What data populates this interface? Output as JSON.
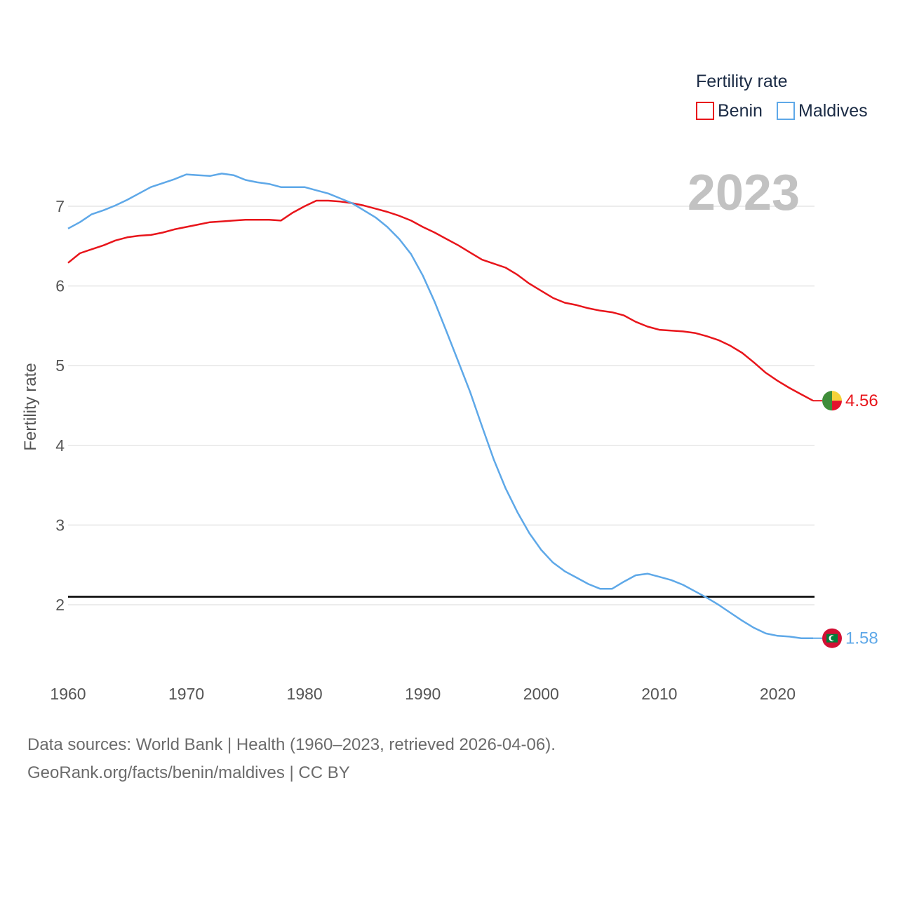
{
  "chart_data": {
    "type": "line",
    "title": "2023",
    "xlabel": "",
    "ylabel": "Fertility rate",
    "xlim": [
      1960,
      2023
    ],
    "ylim": [
      1,
      7.9
    ],
    "x_ticks": [
      1960,
      1970,
      1980,
      1990,
      2000,
      2010,
      2020
    ],
    "y_ticks": [
      2,
      3,
      4,
      5,
      6,
      7
    ],
    "reference_line": 2.1,
    "legend": {
      "title": "Fertility rate",
      "position": "top-right"
    },
    "x": [
      1960,
      1961,
      1962,
      1963,
      1964,
      1965,
      1966,
      1967,
      1968,
      1969,
      1970,
      1971,
      1972,
      1973,
      1974,
      1975,
      1976,
      1977,
      1978,
      1979,
      1980,
      1981,
      1982,
      1983,
      1984,
      1985,
      1986,
      1987,
      1988,
      1989,
      1990,
      1991,
      1992,
      1993,
      1994,
      1995,
      1996,
      1997,
      1998,
      1999,
      2000,
      2001,
      2002,
      2003,
      2004,
      2005,
      2006,
      2007,
      2008,
      2009,
      2010,
      2011,
      2012,
      2013,
      2014,
      2015,
      2016,
      2017,
      2018,
      2019,
      2020,
      2021,
      2022,
      2023
    ],
    "series": [
      {
        "name": "Benin",
        "color": "#e8151b",
        "end_label": "4.56",
        "flag": "benin",
        "values": [
          6.29,
          6.41,
          6.46,
          6.51,
          6.57,
          6.61,
          6.63,
          6.64,
          6.67,
          6.71,
          6.74,
          6.77,
          6.8,
          6.81,
          6.82,
          6.83,
          6.83,
          6.83,
          6.82,
          6.92,
          7.0,
          7.07,
          7.07,
          7.06,
          7.04,
          7.01,
          6.97,
          6.93,
          6.88,
          6.82,
          6.74,
          6.67,
          6.59,
          6.51,
          6.42,
          6.33,
          6.28,
          6.23,
          6.14,
          6.03,
          5.94,
          5.85,
          5.79,
          5.76,
          5.72,
          5.69,
          5.67,
          5.63,
          5.55,
          5.49,
          5.45,
          5.44,
          5.43,
          5.41,
          5.37,
          5.32,
          5.25,
          5.16,
          5.04,
          4.91,
          4.81,
          4.72,
          4.64,
          4.56
        ]
      },
      {
        "name": "Maldives",
        "color": "#5ea8e8",
        "end_label": "1.58",
        "flag": "maldives",
        "values": [
          6.72,
          6.8,
          6.9,
          6.95,
          7.01,
          7.08,
          7.16,
          7.24,
          7.29,
          7.34,
          7.4,
          7.39,
          7.38,
          7.41,
          7.39,
          7.33,
          7.3,
          7.28,
          7.24,
          7.24,
          7.24,
          7.2,
          7.16,
          7.1,
          7.04,
          6.95,
          6.86,
          6.74,
          6.59,
          6.4,
          6.13,
          5.8,
          5.43,
          5.05,
          4.67,
          4.24,
          3.82,
          3.46,
          3.16,
          2.9,
          2.69,
          2.53,
          2.42,
          2.34,
          2.26,
          2.2,
          2.2,
          2.29,
          2.37,
          2.39,
          2.35,
          2.31,
          2.25,
          2.17,
          2.09,
          2.0,
          1.9,
          1.8,
          1.71,
          1.64,
          1.61,
          1.6,
          1.58,
          1.58
        ]
      }
    ]
  },
  "source": {
    "line1": "Data sources: World Bank | Health (1960–2023, retrieved 2026-04-06).",
    "line2": "GeoRank.org/facts/benin/maldives | CC BY"
  }
}
